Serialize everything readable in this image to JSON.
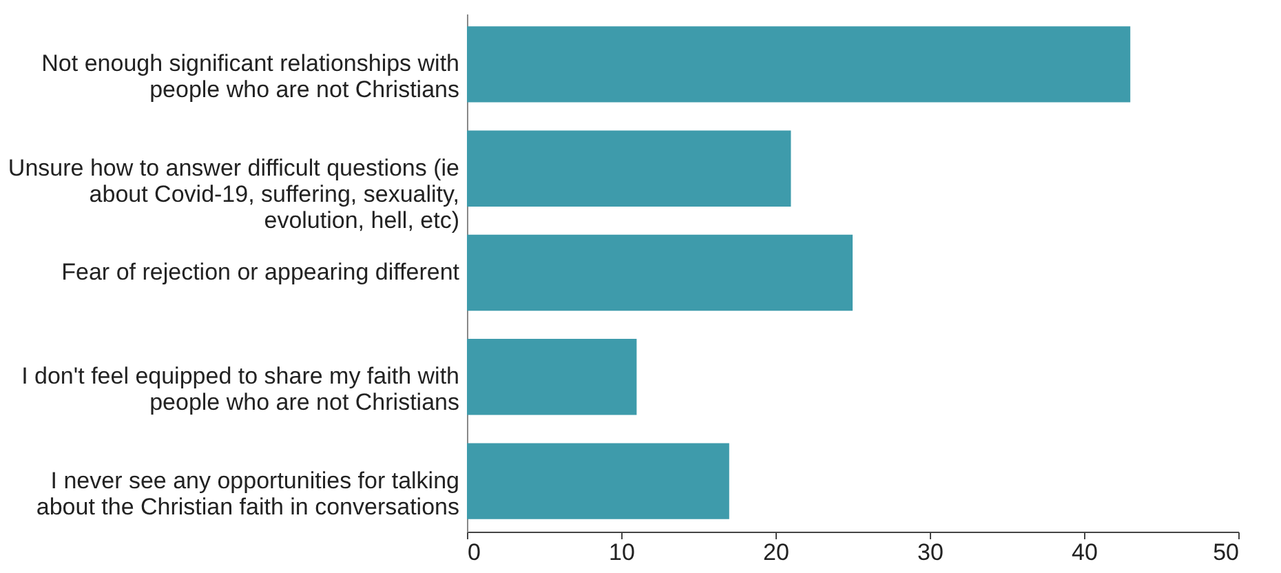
{
  "chart_data": {
    "type": "bar",
    "orientation": "horizontal",
    "categories": [
      "Not enough significant relationships with people who are not Christians",
      "Unsure how to answer difficult questions (ie about Covid-19, suffering, sexuality, evolution, hell, etc)",
      "Fear of rejection or appearing different",
      "I don't feel equipped to share my faith with people who are not Christians",
      "I never see any opportunities for talking about the Christian faith in conversations"
    ],
    "values": [
      43,
      21,
      25,
      11,
      17
    ],
    "color": "#3e9bab",
    "xlim": [
      0,
      50
    ],
    "xticks": [
      0,
      10,
      20,
      30,
      40,
      50
    ],
    "grid": false
  }
}
